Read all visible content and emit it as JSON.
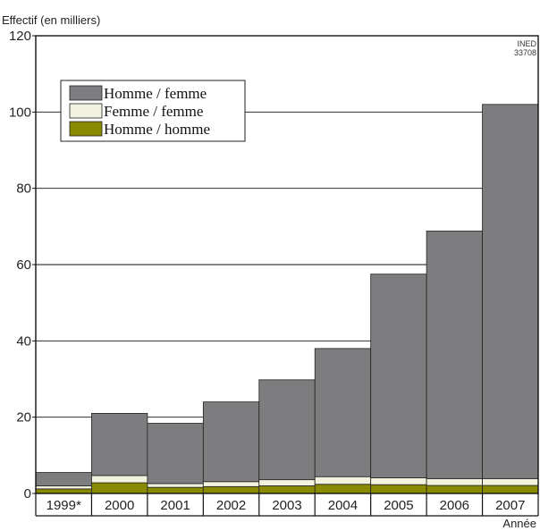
{
  "chart_data": {
    "type": "bar",
    "stacked": true,
    "ylabel": "Effectif (en milliers)",
    "xlabel": "Année",
    "ylim": [
      0,
      120
    ],
    "yticks": [
      0,
      20,
      40,
      60,
      80,
      100,
      120
    ],
    "grid": true,
    "legend_position": "top-left",
    "credit": [
      "INED",
      "33708"
    ],
    "categories": [
      "1999*",
      "2000",
      "2001",
      "2002",
      "2003",
      "2004",
      "2005",
      "2006",
      "2007"
    ],
    "series": [
      {
        "name": "Homme / homme",
        "color": "#8a8a00",
        "values": [
          1.2,
          2.8,
          1.6,
          1.8,
          2.0,
          2.4,
          2.3,
          2.1,
          2.1
        ]
      },
      {
        "name": "Femme / femme",
        "color": "#f2f2de",
        "values": [
          0.8,
          1.9,
          1.0,
          1.3,
          1.6,
          2.0,
          1.8,
          1.8,
          1.8
        ]
      },
      {
        "name": "Homme / femme",
        "color": "#7d7d7f",
        "values": [
          3.5,
          16.3,
          15.8,
          20.9,
          26.2,
          33.6,
          53.4,
          64.9,
          98.1
        ]
      }
    ],
    "legend_order": [
      "Homme / femme",
      "Femme / femme",
      "Homme / homme"
    ]
  },
  "colors": {
    "frame": "#111111",
    "gridline": "#111111",
    "background": "#ffffff"
  }
}
